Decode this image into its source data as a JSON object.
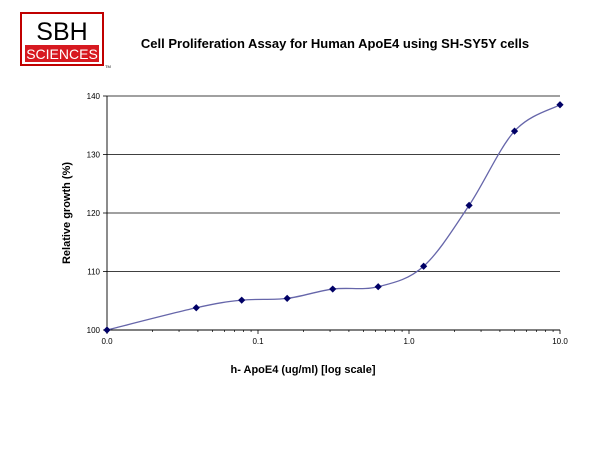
{
  "logo": {
    "line1": "SBH",
    "line2": "SCIENCES",
    "tm": "TM",
    "border_color": "#c00000",
    "band_color": "#d71920"
  },
  "chart_data": {
    "type": "line",
    "title": "Cell Proliferation Assay for Human ApoE4 using SH-SY5Y cells",
    "xlabel": "h- ApoE4 (ug/ml) [log scale]",
    "ylabel": "Relative growth (%)",
    "x_scale": "log",
    "xlim": [
      0.01,
      10.0
    ],
    "ylim": [
      100,
      140
    ],
    "x_ticks": [
      {
        "value": 0.01,
        "label": "0.0"
      },
      {
        "value": 0.1,
        "label": "0.1"
      },
      {
        "value": 1.0,
        "label": "1.0"
      },
      {
        "value": 10.0,
        "label": "10.0"
      }
    ],
    "y_ticks": [
      {
        "value": 100,
        "label": "100"
      },
      {
        "value": 110,
        "label": "110"
      },
      {
        "value": 120,
        "label": "120"
      },
      {
        "value": 130,
        "label": "130"
      },
      {
        "value": 140,
        "label": "140"
      }
    ],
    "grid": "horizontal",
    "legend": "none",
    "line_color": "#6666aa",
    "marker_color": "#000066",
    "series": [
      {
        "x": [
          0.01,
          0.039,
          0.078,
          0.156,
          0.3125,
          0.625,
          1.25,
          2.5,
          5.0,
          10.0
        ],
        "y": [
          100,
          103.8,
          105.1,
          105.4,
          107.0,
          107.4,
          110.9,
          121.3,
          134.0,
          138.5
        ]
      }
    ]
  }
}
